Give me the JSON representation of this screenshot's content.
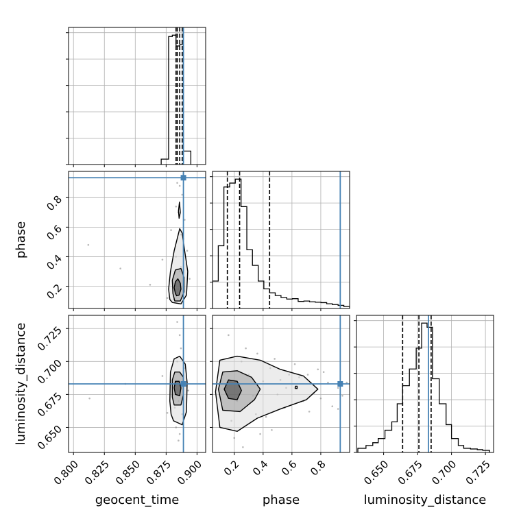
{
  "chart_data": {
    "type": "corner",
    "parameters": [
      "geocent_time",
      "phase",
      "luminosity_distance"
    ],
    "truths": {
      "geocent_time": 0.889,
      "phase": 0.935,
      "luminosity_distance": 0.683
    },
    "colors": {
      "truth": "#4682b4",
      "hist": "#000000",
      "grid": "#b0b0b0",
      "points": "#808080"
    },
    "ticks": {
      "geocent_time": [
        "0.800",
        "0.825",
        "0.850",
        "0.875",
        "0.900"
      ],
      "phase": [
        "0.2",
        "0.4",
        "0.6",
        "0.8"
      ],
      "luminosity_distance": [
        "0.650",
        "0.675",
        "0.700",
        "0.725"
      ]
    },
    "panels": [
      {
        "id": "hist-geocent_time",
        "type": "histogram",
        "x": "geocent_time",
        "xlim": [
          0.796,
          0.907
        ],
        "bin_edges": [
          0.871,
          0.877,
          0.88,
          0.883,
          0.886,
          0.889,
          0.895
        ],
        "counts": [
          4,
          95,
          96,
          88,
          89,
          10
        ],
        "quantiles": [
          0.883,
          0.884,
          0.886,
          0.888
        ]
      },
      {
        "id": "hist-phase",
        "type": "histogram",
        "x": "phase",
        "xlim": [
          0.049,
          1.0
        ],
        "bin_edges": [
          0.049,
          0.089,
          0.128,
          0.168,
          0.207,
          0.247,
          0.287,
          0.326,
          0.366,
          0.405,
          0.445,
          0.484,
          0.524,
          0.564,
          0.603,
          0.643,
          0.683,
          0.722,
          0.762,
          0.801,
          0.841,
          0.88,
          0.92,
          0.96,
          1.0
        ],
        "counts": [
          7,
          16,
          31,
          32,
          33,
          26,
          15,
          11,
          7,
          5,
          4,
          3.3,
          2.8,
          2.4,
          2.5,
          1.8,
          1.9,
          1.7,
          1.6,
          1.5,
          1.2,
          1.0,
          0.8,
          0.5
        ],
        "quantiles": [
          0.152,
          0.237,
          0.445
        ]
      },
      {
        "id": "hist-luminosity_distance",
        "type": "histogram",
        "x": "luminosity_distance",
        "xlim": [
          0.63,
          0.731
        ],
        "bin_edges": [
          0.631,
          0.637,
          0.642,
          0.646,
          0.651,
          0.656,
          0.66,
          0.664,
          0.669,
          0.674,
          0.678,
          0.682,
          0.686,
          0.691,
          0.696,
          0.7,
          0.705,
          0.709,
          0.714,
          0.719,
          0.723,
          0.728
        ],
        "counts": [
          3,
          5,
          7,
          10,
          16,
          22,
          35,
          48,
          60,
          75,
          93,
          90,
          53,
          35,
          20,
          10,
          5,
          3,
          2.5,
          2,
          1.5
        ],
        "quantiles": [
          0.664,
          0.676,
          0.685
        ]
      },
      {
        "id": "scatter-geocent_time-phase",
        "type": "scatter",
        "x": "geocent_time",
        "y": "phase",
        "xlim": [
          0.796,
          0.907
        ],
        "ylim": [
          0.049,
          0.978
        ],
        "points": [
          [
            0.881,
            0.22
          ],
          [
            0.884,
            0.15
          ],
          [
            0.886,
            0.3
          ],
          [
            0.883,
            0.4
          ],
          [
            0.887,
            0.55
          ],
          [
            0.885,
            0.7
          ],
          [
            0.888,
            0.82
          ],
          [
            0.886,
            0.88
          ],
          [
            0.889,
            0.96
          ],
          [
            0.882,
            0.3
          ],
          [
            0.89,
            0.65
          ],
          [
            0.884,
            0.9
          ],
          [
            0.812,
            0.48
          ],
          [
            0.838,
            0.32
          ],
          [
            0.862,
            0.21
          ],
          [
            0.872,
            0.38
          ],
          [
            0.876,
            0.12
          ],
          [
            0.879,
            0.58
          ],
          [
            0.892,
            0.44
          ],
          [
            0.894,
            0.25
          ],
          [
            0.883,
            0.74
          ],
          [
            0.887,
            0.33
          ],
          [
            0.885,
            0.18
          ],
          [
            0.881,
            0.11
          ],
          [
            0.889,
            0.52
          ]
        ],
        "contours": [
          [
            [
              0.8835,
              0.135
            ],
            [
              0.8855,
              0.14
            ],
            [
              0.887,
              0.18
            ],
            [
              0.8865,
              0.22
            ],
            [
              0.8845,
              0.25
            ],
            [
              0.8825,
              0.23
            ],
            [
              0.8815,
              0.19
            ],
            [
              0.8825,
              0.15
            ]
          ],
          [
            [
              0.882,
              0.1
            ],
            [
              0.8865,
              0.1
            ],
            [
              0.8895,
              0.16
            ],
            [
              0.8895,
              0.26
            ],
            [
              0.887,
              0.32
            ],
            [
              0.8825,
              0.31
            ],
            [
              0.88,
              0.24
            ],
            [
              0.8805,
              0.15
            ]
          ],
          [
            [
              0.88,
              0.09
            ],
            [
              0.887,
              0.08
            ],
            [
              0.8915,
              0.14
            ],
            [
              0.8925,
              0.3
            ],
            [
              0.89,
              0.44
            ],
            [
              0.888,
              0.56
            ],
            [
              0.886,
              0.59
            ],
            [
              0.8845,
              0.54
            ],
            [
              0.8815,
              0.44
            ],
            [
              0.8785,
              0.3
            ],
            [
              0.877,
              0.18
            ],
            [
              0.878,
              0.11
            ]
          ],
          [
            [
              0.8855,
              0.66
            ],
            [
              0.8865,
              0.7
            ],
            [
              0.8858,
              0.77
            ],
            [
              0.885,
              0.71
            ]
          ]
        ]
      },
      {
        "id": "scatter-geocent_time-luminosity_distance",
        "type": "scatter",
        "x": "geocent_time",
        "y": "luminosity_distance",
        "xlim": [
          0.796,
          0.907
        ],
        "ylim": [
          0.631,
          0.735
        ],
        "points": [
          [
            0.882,
            0.68
          ],
          [
            0.885,
            0.67
          ],
          [
            0.887,
            0.69
          ],
          [
            0.884,
            0.7
          ],
          [
            0.888,
            0.66
          ],
          [
            0.886,
            0.72
          ],
          [
            0.883,
            0.65
          ],
          [
            0.889,
            0.685
          ],
          [
            0.881,
            0.675
          ],
          [
            0.887,
            0.71
          ],
          [
            0.885,
            0.64
          ],
          [
            0.89,
            0.695
          ],
          [
            0.813,
            0.672
          ],
          [
            0.842,
            0.683
          ],
          [
            0.872,
            0.689
          ],
          [
            0.876,
            0.661
          ],
          [
            0.893,
            0.678
          ],
          [
            0.884,
            0.73
          ],
          [
            0.886,
            0.645
          ],
          [
            0.882,
            0.665
          ]
        ],
        "contours": [
          [
            [
              0.8825,
              0.675
            ],
            [
              0.886,
              0.674
            ],
            [
              0.887,
              0.68
            ],
            [
              0.8855,
              0.685
            ],
            [
              0.8825,
              0.685
            ],
            [
              0.8815,
              0.68
            ]
          ],
          [
            [
              0.8815,
              0.667
            ],
            [
              0.887,
              0.667
            ],
            [
              0.889,
              0.675
            ],
            [
              0.889,
              0.688
            ],
            [
              0.886,
              0.692
            ],
            [
              0.882,
              0.692
            ],
            [
              0.88,
              0.686
            ],
            [
              0.88,
              0.673
            ]
          ],
          [
            [
              0.881,
              0.655
            ],
            [
              0.888,
              0.652
            ],
            [
              0.8915,
              0.662
            ],
            [
              0.892,
              0.684
            ],
            [
              0.8905,
              0.698
            ],
            [
              0.886,
              0.704
            ],
            [
              0.8815,
              0.702
            ],
            [
              0.8785,
              0.692
            ],
            [
              0.878,
              0.67
            ],
            [
              0.879,
              0.66
            ]
          ]
        ]
      },
      {
        "id": "scatter-phase-luminosity_distance",
        "type": "scatter",
        "x": "phase",
        "y": "luminosity_distance",
        "xlim": [
          0.049,
          1.0
        ],
        "ylim": [
          0.631,
          0.735
        ],
        "points": [
          [
            0.15,
            0.68
          ],
          [
            0.22,
            0.67
          ],
          [
            0.3,
            0.69
          ],
          [
            0.4,
            0.685
          ],
          [
            0.5,
            0.675
          ],
          [
            0.62,
            0.68
          ],
          [
            0.71,
            0.69
          ],
          [
            0.8,
            0.672
          ],
          [
            0.92,
            0.68
          ],
          [
            0.25,
            0.7
          ],
          [
            0.35,
            0.66
          ],
          [
            0.45,
            0.695
          ],
          [
            0.55,
            0.665
          ],
          [
            0.65,
            0.688
          ],
          [
            0.75,
            0.676
          ],
          [
            0.85,
            0.684
          ],
          [
            0.18,
            0.655
          ],
          [
            0.28,
            0.71
          ],
          [
            0.38,
            0.645
          ],
          [
            0.48,
            0.702
          ],
          [
            0.58,
            0.69
          ],
          [
            0.68,
            0.67
          ],
          [
            0.78,
            0.694
          ],
          [
            0.88,
            0.666
          ],
          [
            0.95,
            0.674
          ],
          [
            0.12,
            0.69
          ],
          [
            0.2,
            0.642
          ],
          [
            0.33,
            0.674
          ],
          [
            0.42,
            0.658
          ],
          [
            0.52,
            0.686
          ],
          [
            0.62,
            0.698
          ],
          [
            0.72,
            0.662
          ],
          [
            0.82,
            0.692
          ],
          [
            0.92,
            0.664
          ],
          [
            0.98,
            0.684
          ],
          [
            0.16,
            0.72
          ],
          [
            0.26,
            0.635
          ],
          [
            0.36,
            0.706
          ],
          [
            0.46,
            0.648
          ],
          [
            0.56,
            0.68
          ]
        ],
        "contours": [
          [
            [
              0.16,
              0.672
            ],
            [
              0.22,
              0.671
            ],
            [
              0.25,
              0.678
            ],
            [
              0.22,
              0.685
            ],
            [
              0.16,
              0.686
            ],
            [
              0.13,
              0.679
            ]
          ],
          [
            [
              0.12,
              0.663
            ],
            [
              0.24,
              0.662
            ],
            [
              0.34,
              0.671
            ],
            [
              0.38,
              0.679
            ],
            [
              0.32,
              0.688
            ],
            [
              0.22,
              0.693
            ],
            [
              0.12,
              0.692
            ],
            [
              0.09,
              0.679
            ]
          ],
          [
            [
              0.1,
              0.65
            ],
            [
              0.22,
              0.647
            ],
            [
              0.36,
              0.657
            ],
            [
              0.52,
              0.664
            ],
            [
              0.7,
              0.671
            ],
            [
              0.78,
              0.679
            ],
            [
              0.68,
              0.689
            ],
            [
              0.52,
              0.694
            ],
            [
              0.38,
              0.701
            ],
            [
              0.22,
              0.704
            ],
            [
              0.1,
              0.701
            ],
            [
              0.07,
              0.677
            ]
          ],
          [
            [
              0.624,
              0.6795
            ],
            [
              0.636,
              0.6795
            ],
            [
              0.636,
              0.6812
            ],
            [
              0.624,
              0.6812
            ]
          ]
        ]
      }
    ]
  }
}
